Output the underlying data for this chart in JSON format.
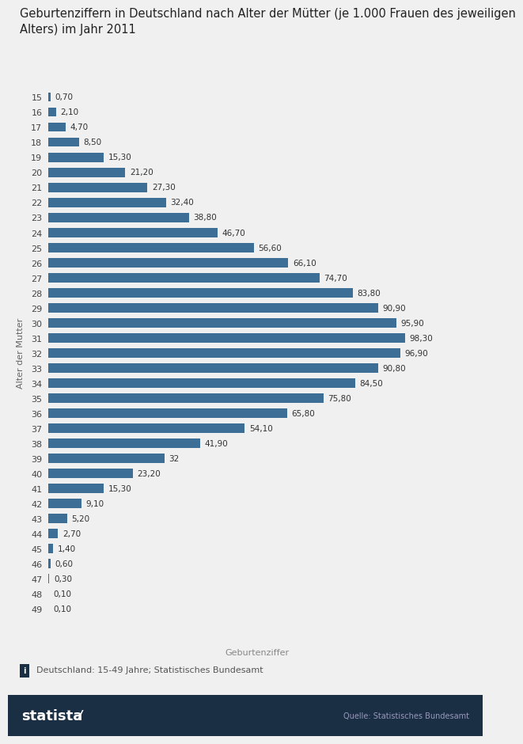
{
  "title": "Geburtenziffern in Deutschland nach Alter der Mütter (je 1.000 Frauen des jeweiligen\nAlters) im Jahr 2011",
  "ages": [
    15,
    16,
    17,
    18,
    19,
    20,
    21,
    22,
    23,
    24,
    25,
    26,
    27,
    28,
    29,
    30,
    31,
    32,
    33,
    34,
    35,
    36,
    37,
    38,
    39,
    40,
    41,
    42,
    43,
    44,
    45,
    46,
    47,
    48,
    49
  ],
  "values": [
    0.7,
    2.1,
    4.7,
    8.5,
    15.3,
    21.2,
    27.3,
    32.4,
    38.8,
    46.7,
    56.6,
    66.1,
    74.7,
    83.8,
    90.9,
    95.9,
    98.3,
    96.9,
    90.8,
    84.5,
    75.8,
    65.8,
    54.1,
    41.9,
    32.0,
    23.2,
    15.3,
    9.1,
    5.2,
    2.7,
    1.4,
    0.6,
    0.3,
    0.1,
    0.1
  ],
  "value_labels": [
    "0,70",
    "2,10",
    "4,70",
    "8,50",
    "15,30",
    "21,20",
    "27,30",
    "32,40",
    "38,80",
    "46,70",
    "56,60",
    "66,10",
    "74,70",
    "83,80",
    "90,90",
    "95,90",
    "98,30",
    "96,90",
    "90,80",
    "84,50",
    "75,80",
    "65,80",
    "54,10",
    "41,90",
    "32",
    "23,20",
    "15,30",
    "9,10",
    "5,20",
    "2,70",
    "1,40",
    "0,60",
    "0,30",
    "0,10",
    "0,10"
  ],
  "bar_color": "#3d6e96",
  "ylabel": "Alter der Mutter",
  "xlabel": "Geburtenziffer",
  "note": "Deutschland: 15-49 Jahre; Statistisches Bundesamt",
  "source": "Quelle: Statistisches Bundesamt",
  "statista_text": "statista",
  "footer_bg": "#1a2e44",
  "background_color": "#f0f0f0",
  "title_fontsize": 10.5,
  "label_fontsize": 7.5,
  "axis_fontsize": 8
}
